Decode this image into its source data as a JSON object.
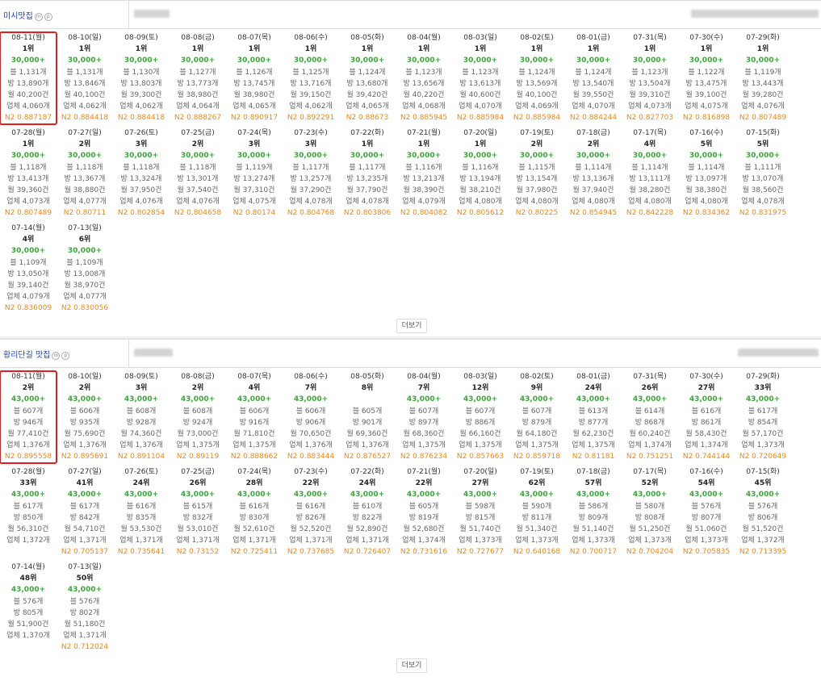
{
  "sections": [
    {
      "keyword": "미시맛집",
      "more_label": "더보기",
      "cards": [
        {
          "date": "08-11(월)",
          "rank": "1위",
          "volume": "30,000+",
          "blog": "블 1,131개",
          "room": "방 13,890개",
          "month": "월 40,200건",
          "biz": "업체 4,060개",
          "n2": "N2 0.887187",
          "selected": true
        },
        {
          "date": "08-10(일)",
          "rank": "1위",
          "volume": "30,000+",
          "blog": "블 1,131개",
          "room": "방 13,846개",
          "month": "월 40,100건",
          "biz": "업체 4,062개",
          "n2": "N2 0.884418"
        },
        {
          "date": "08-09(토)",
          "rank": "1위",
          "volume": "30,000+",
          "blog": "블 1,130개",
          "room": "방 13,803개",
          "month": "월 39,300건",
          "biz": "업체 4,062개",
          "n2": "N2 0.884418"
        },
        {
          "date": "08-08(금)",
          "rank": "1위",
          "volume": "30,000+",
          "blog": "블 1,127개",
          "room": "방 13,773개",
          "month": "월 38,980건",
          "biz": "업체 4,064개",
          "n2": "N2 0.888267"
        },
        {
          "date": "08-07(목)",
          "rank": "1위",
          "volume": "30,000+",
          "blog": "블 1,126개",
          "room": "방 13,745개",
          "month": "월 38,980건",
          "biz": "업체 4,065개",
          "n2": "N2 0.890917"
        },
        {
          "date": "08-06(수)",
          "rank": "1위",
          "volume": "30,000+",
          "blog": "블 1,125개",
          "room": "방 13,716개",
          "month": "월 39,150건",
          "biz": "업체 4,062개",
          "n2": "N2 0.892291"
        },
        {
          "date": "08-05(화)",
          "rank": "1위",
          "volume": "30,000+",
          "blog": "블 1,124개",
          "room": "방 13,680개",
          "month": "월 39,420건",
          "biz": "업체 4,065개",
          "n2": "N2 0.88673"
        },
        {
          "date": "08-04(월)",
          "rank": "1위",
          "volume": "30,000+",
          "blog": "블 1,123개",
          "room": "방 13,656개",
          "month": "월 40,220건",
          "biz": "업체 4,068개",
          "n2": "N2 0.885945"
        },
        {
          "date": "08-03(일)",
          "rank": "1위",
          "volume": "30,000+",
          "blog": "블 1,123개",
          "room": "방 13,613개",
          "month": "월 40,600건",
          "biz": "업체 4,070개",
          "n2": "N2 0.885984"
        },
        {
          "date": "08-02(토)",
          "rank": "1위",
          "volume": "30,000+",
          "blog": "블 1,124개",
          "room": "방 13,569개",
          "month": "월 40,100건",
          "biz": "업체 4,069개",
          "n2": "N2 0.885984"
        },
        {
          "date": "08-01(금)",
          "rank": "1위",
          "volume": "30,000+",
          "blog": "블 1,124개",
          "room": "방 13,540개",
          "month": "월 39,550건",
          "biz": "업체 4,070개",
          "n2": "N2 0.884244"
        },
        {
          "date": "07-31(목)",
          "rank": "1위",
          "volume": "30,000+",
          "blog": "블 1,123개",
          "room": "방 13,504개",
          "month": "월 39,310건",
          "biz": "업체 4,073개",
          "n2": "N2 0.827703"
        },
        {
          "date": "07-30(수)",
          "rank": "1위",
          "volume": "30,000+",
          "blog": "블 1,122개",
          "room": "방 13,475개",
          "month": "월 39,100건",
          "biz": "업체 4,075개",
          "n2": "N2 0.816898"
        },
        {
          "date": "07-29(화)",
          "rank": "1위",
          "volume": "30,000+",
          "blog": "블 1,119개",
          "room": "방 13,443개",
          "month": "월 39,280건",
          "biz": "업체 4,076개",
          "n2": "N2 0.807489"
        },
        {
          "date": "07-28(월)",
          "rank": "1위",
          "volume": "30,000+",
          "blog": "블 1,118개",
          "room": "방 13,413개",
          "month": "월 39,360건",
          "biz": "업체 4,073개",
          "n2": "N2 0.807489"
        },
        {
          "date": "07-27(일)",
          "rank": "2위",
          "volume": "30,000+",
          "blog": "블 1,118개",
          "room": "방 13,367개",
          "month": "월 38,880건",
          "biz": "업체 4,077개",
          "n2": "N2 0.80711"
        },
        {
          "date": "07-26(토)",
          "rank": "3위",
          "volume": "30,000+",
          "blog": "블 1,118개",
          "room": "방 13,324개",
          "month": "월 37,950건",
          "biz": "업체 4,076개",
          "n2": "N2 0.802854"
        },
        {
          "date": "07-25(금)",
          "rank": "2위",
          "volume": "30,000+",
          "blog": "블 1,118개",
          "room": "방 13,301개",
          "month": "월 37,540건",
          "biz": "업체 4,076개",
          "n2": "N2 0.804658"
        },
        {
          "date": "07-24(목)",
          "rank": "3위",
          "volume": "30,000+",
          "blog": "블 1,119개",
          "room": "방 13,274개",
          "month": "월 37,310건",
          "biz": "업체 4,075개",
          "n2": "N2 0.80174"
        },
        {
          "date": "07-23(수)",
          "rank": "3위",
          "volume": "30,000+",
          "blog": "블 1,117개",
          "room": "방 13,257개",
          "month": "월 37,290건",
          "biz": "업체 4,078개",
          "n2": "N2 0.804768"
        },
        {
          "date": "07-22(화)",
          "rank": "1위",
          "volume": "30,000+",
          "blog": "블 1,117개",
          "room": "방 13,235개",
          "month": "월 37,790건",
          "biz": "업체 4,078개",
          "n2": "N2 0.803806"
        },
        {
          "date": "07-21(월)",
          "rank": "1위",
          "volume": "30,000+",
          "blog": "블 1,116개",
          "room": "방 13,213개",
          "month": "월 38,390건",
          "biz": "업체 4,079개",
          "n2": "N2 0.804082"
        },
        {
          "date": "07-20(일)",
          "rank": "1위",
          "volume": "30,000+",
          "blog": "블 1,116개",
          "room": "방 13,194개",
          "month": "월 38,210건",
          "biz": "업체 4,080개",
          "n2": "N2 0.805612"
        },
        {
          "date": "07-19(토)",
          "rank": "2위",
          "volume": "30,000+",
          "blog": "블 1,115개",
          "room": "방 13,154개",
          "month": "월 37,980건",
          "biz": "업체 4,080개",
          "n2": "N2 0.80225"
        },
        {
          "date": "07-18(금)",
          "rank": "2위",
          "volume": "30,000+",
          "blog": "블 1,114개",
          "room": "방 13,136개",
          "month": "월 37,940건",
          "biz": "업체 4,080개",
          "n2": "N2 0.854945"
        },
        {
          "date": "07-17(목)",
          "rank": "4위",
          "volume": "30,000+",
          "blog": "블 1,114개",
          "room": "방 13,111개",
          "month": "월 38,280건",
          "biz": "업체 4,080개",
          "n2": "N2 0.842228"
        },
        {
          "date": "07-16(수)",
          "rank": "5위",
          "volume": "30,000+",
          "blog": "블 1,114개",
          "room": "방 13,097개",
          "month": "월 38,380건",
          "biz": "업체 4,080개",
          "n2": "N2 0.834362"
        },
        {
          "date": "07-15(화)",
          "rank": "5위",
          "volume": "30,000+",
          "blog": "블 1,111개",
          "room": "방 13,070개",
          "month": "월 38,560건",
          "biz": "업체 4,078개",
          "n2": "N2 0.831975"
        },
        {
          "date": "07-14(월)",
          "rank": "4위",
          "volume": "30,000+",
          "blog": "블 1,109개",
          "room": "방 13,050개",
          "month": "월 39,140건",
          "biz": "업체 4,079개",
          "n2": "N2 0.836009"
        },
        {
          "date": "07-13(일)",
          "rank": "6위",
          "volume": "30,000+",
          "blog": "블 1,109개",
          "room": "방 13,008개",
          "month": "월 38,970건",
          "biz": "업체 4,077개",
          "n2": "N2 0.830056"
        }
      ]
    },
    {
      "keyword": "황리단길 맛집",
      "more_label": "더보기",
      "cards": [
        {
          "date": "08-11(월)",
          "rank": "2위",
          "volume": "43,000+",
          "blog": "블 607개",
          "room": "방 946개",
          "month": "월 77,410건",
          "biz": "업체 1,376개",
          "n2": "N2 0.895558",
          "selected": true
        },
        {
          "date": "08-10(일)",
          "rank": "2위",
          "volume": "43,000+",
          "blog": "블 606개",
          "room": "방 935개",
          "month": "월 75,690건",
          "biz": "업체 1,376개",
          "n2": "N2 0.895691"
        },
        {
          "date": "08-09(토)",
          "rank": "3위",
          "volume": "43,000+",
          "blog": "블 608개",
          "room": "방 928개",
          "month": "월 74,360건",
          "biz": "업체 1,376개",
          "n2": "N2 0.891104"
        },
        {
          "date": "08-08(금)",
          "rank": "2위",
          "volume": "43,000+",
          "blog": "블 608개",
          "room": "방 924개",
          "month": "월 73,000건",
          "biz": "업체 1,375개",
          "n2": "N2 0.89119"
        },
        {
          "date": "08-07(목)",
          "rank": "4위",
          "volume": "43,000+",
          "blog": "블 606개",
          "room": "방 916개",
          "month": "월 71,810건",
          "biz": "업체 1,375개",
          "n2": "N2 0.888662"
        },
        {
          "date": "08-06(수)",
          "rank": "7위",
          "volume": "43,000+",
          "blog": "블 606개",
          "room": "방 906개",
          "month": "월 70,650건",
          "biz": "업체 1,376개",
          "n2": "N2 0.883444"
        },
        {
          "date": "08-05(화)",
          "rank": "8위",
          "volume": "",
          "blog": "블 605개",
          "room": "방 901개",
          "month": "월 69,360건",
          "biz": "업체 1,376개",
          "n2": "N2 0.876527"
        },
        {
          "date": "08-04(월)",
          "rank": "7위",
          "volume": "43,000+",
          "blog": "블 607개",
          "room": "방 897개",
          "month": "월 68,360건",
          "biz": "업체 1,375개",
          "n2": "N2 0.876234"
        },
        {
          "date": "08-03(일)",
          "rank": "12위",
          "volume": "43,000+",
          "blog": "블 607개",
          "room": "방 886개",
          "month": "월 66,160건",
          "biz": "업체 1,375개",
          "n2": "N2 0.857663"
        },
        {
          "date": "08-02(토)",
          "rank": "9위",
          "volume": "43,000+",
          "blog": "블 607개",
          "room": "방 879개",
          "month": "월 64,180건",
          "biz": "업체 1,375개",
          "n2": "N2 0.859718"
        },
        {
          "date": "08-01(금)",
          "rank": "24위",
          "volume": "43,000+",
          "blog": "블 613개",
          "room": "방 877개",
          "month": "월 62,230건",
          "biz": "업체 1,375개",
          "n2": "N2 0.81181"
        },
        {
          "date": "07-31(목)",
          "rank": "26위",
          "volume": "43,000+",
          "blog": "블 614개",
          "room": "방 868개",
          "month": "월 60,240건",
          "biz": "업체 1,374개",
          "n2": "N2 0.751251"
        },
        {
          "date": "07-30(수)",
          "rank": "27위",
          "volume": "43,000+",
          "blog": "블 616개",
          "room": "방 861개",
          "month": "월 58,430건",
          "biz": "업체 1,374개",
          "n2": "N2 0.744144"
        },
        {
          "date": "07-29(화)",
          "rank": "33위",
          "volume": "43,000+",
          "blog": "블 617개",
          "room": "방 854개",
          "month": "월 57,170건",
          "biz": "업체 1,373개",
          "n2": "N2 0.720649"
        },
        {
          "date": "07-28(월)",
          "rank": "33위",
          "volume": "43,000+",
          "blog": "블 617개",
          "room": "방 850개",
          "month": "월 56,310건",
          "biz": "업체 1,372개",
          "n2": ""
        },
        {
          "date": "07-27(일)",
          "rank": "41위",
          "volume": "43,000+",
          "blog": "블 617개",
          "room": "방 842개",
          "month": "월 54,710건",
          "biz": "업체 1,371개",
          "n2": "N2 0.705137"
        },
        {
          "date": "07-26(토)",
          "rank": "24위",
          "volume": "43,000+",
          "blog": "블 616개",
          "room": "방 835개",
          "month": "월 53,530건",
          "biz": "업체 1,371개",
          "n2": "N2 0.735641"
        },
        {
          "date": "07-25(금)",
          "rank": "26위",
          "volume": "43,000+",
          "blog": "블 615개",
          "room": "방 832개",
          "month": "월 53,010건",
          "biz": "업체 1,371개",
          "n2": "N2 0.73152"
        },
        {
          "date": "07-24(목)",
          "rank": "28위",
          "volume": "43,000+",
          "blog": "블 616개",
          "room": "방 830개",
          "month": "월 52,610건",
          "biz": "업체 1,371개",
          "n2": "N2 0.725411"
        },
        {
          "date": "07-23(수)",
          "rank": "22위",
          "volume": "43,000+",
          "blog": "블 616개",
          "room": "방 826개",
          "month": "월 52,520건",
          "biz": "업체 1,371개",
          "n2": "N2 0.737685"
        },
        {
          "date": "07-22(화)",
          "rank": "24위",
          "volume": "43,000+",
          "blog": "블 610개",
          "room": "방 822개",
          "month": "월 52,890건",
          "biz": "업체 1,371개",
          "n2": "N2 0.726407"
        },
        {
          "date": "07-21(월)",
          "rank": "22위",
          "volume": "43,000+",
          "blog": "블 605개",
          "room": "방 819개",
          "month": "월 52,680건",
          "biz": "업체 1,374개",
          "n2": "N2 0.731616"
        },
        {
          "date": "07-20(일)",
          "rank": "27위",
          "volume": "43,000+",
          "blog": "블 598개",
          "room": "방 815개",
          "month": "월 51,740건",
          "biz": "업체 1,373개",
          "n2": "N2 0.727677"
        },
        {
          "date": "07-19(토)",
          "rank": "62위",
          "volume": "43,000+",
          "blog": "블 590개",
          "room": "방 811개",
          "month": "월 51,340건",
          "biz": "업체 1,373개",
          "n2": "N2 0.640168"
        },
        {
          "date": "07-18(금)",
          "rank": "57위",
          "volume": "43,000+",
          "blog": "블 586개",
          "room": "방 809개",
          "month": "월 51,140건",
          "biz": "업체 1,373개",
          "n2": "N2 0.700717"
        },
        {
          "date": "07-17(목)",
          "rank": "52위",
          "volume": "43,000+",
          "blog": "블 580개",
          "room": "방 808개",
          "month": "월 51,250건",
          "biz": "업체 1,373개",
          "n2": "N2 0.704204"
        },
        {
          "date": "07-16(수)",
          "rank": "54위",
          "volume": "43,000+",
          "blog": "블 576개",
          "room": "방 807개",
          "month": "월 51,060건",
          "biz": "업체 1,373개",
          "n2": "N2 0.705835"
        },
        {
          "date": "07-15(화)",
          "rank": "45위",
          "volume": "43,000+",
          "blog": "블 576개",
          "room": "방 806개",
          "month": "월 51,520건",
          "biz": "업체 1,372개",
          "n2": "N2 0.713395"
        },
        {
          "date": "07-14(월)",
          "rank": "48위",
          "volume": "43,000+",
          "blog": "블 576개",
          "room": "방 805개",
          "month": "월 51,900건",
          "biz": "업체 1,370개",
          "n2": ""
        },
        {
          "date": "07-13(일)",
          "rank": "50위",
          "volume": "43,000+",
          "blog": "블 576개",
          "room": "방 802개",
          "month": "월 51,180건",
          "biz": "업체 1,371개",
          "n2": "N2 0.712024"
        }
      ]
    }
  ],
  "colors": {
    "keyword": "#1a3fb4",
    "volume": "#3aa63a",
    "n2": "#e8891d",
    "selected": "#e02020"
  }
}
